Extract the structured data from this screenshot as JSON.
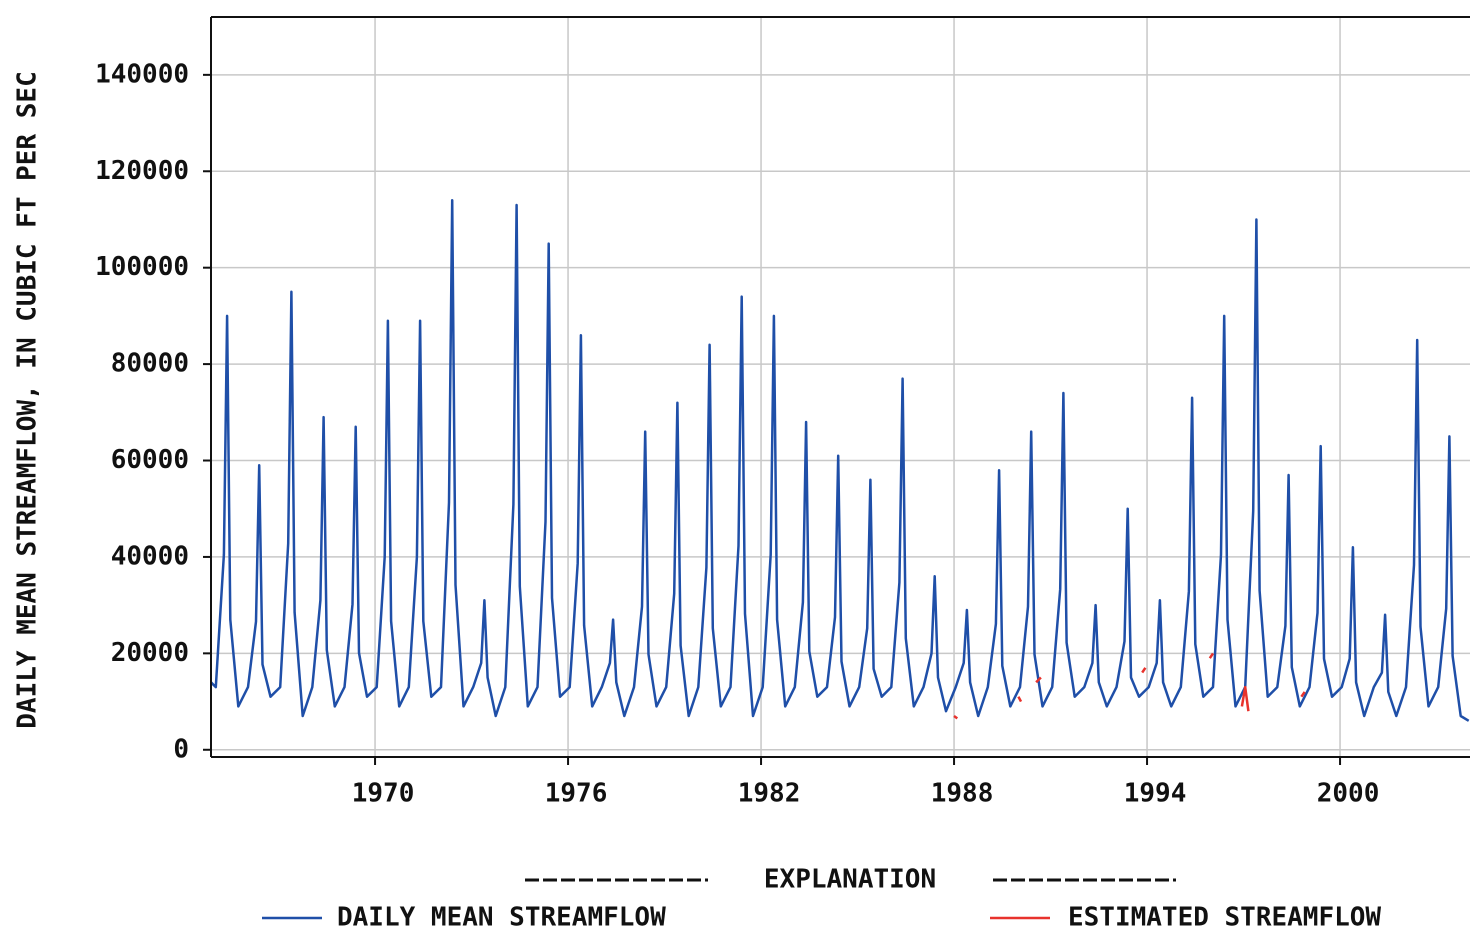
{
  "chart_data": {
    "type": "line",
    "y_label": "DAILY MEAN STREAMFLOW, IN CUBIC FT PER SEC",
    "legend_title": "EXPLANATION",
    "grid": true,
    "xlim": [
      1964.9,
      2004.04
    ],
    "ylim": [
      -1500,
      152000
    ],
    "xticks": [
      1970,
      1976,
      1982,
      1988,
      1994,
      2000
    ],
    "yticks": [
      0,
      20000,
      40000,
      60000,
      80000,
      100000,
      120000,
      140000
    ],
    "series": [
      {
        "name": "DAILY MEAN STREAMFLOW",
        "color": "#1f4fa8",
        "x": [
          1964.9,
          1965.05,
          1965.3,
          1965.4,
          1965.5,
          1965.75,
          1966.05,
          1966.3,
          1966.4,
          1966.5,
          1966.75,
          1967.05,
          1967.3,
          1967.4,
          1967.5,
          1967.75,
          1968.05,
          1968.3,
          1968.4,
          1968.5,
          1968.75,
          1969.05,
          1969.3,
          1969.4,
          1969.5,
          1969.75,
          1970.05,
          1970.3,
          1970.4,
          1970.5,
          1970.75,
          1971.05,
          1971.3,
          1971.4,
          1971.5,
          1971.75,
          1972.05,
          1972.3,
          1972.4,
          1972.5,
          1972.75,
          1973.05,
          1973.3,
          1973.4,
          1973.5,
          1973.75,
          1974.05,
          1974.3,
          1974.4,
          1974.5,
          1974.75,
          1975.05,
          1975.3,
          1975.4,
          1975.5,
          1975.75,
          1976.05,
          1976.3,
          1976.4,
          1976.5,
          1976.75,
          1977.05,
          1977.3,
          1977.4,
          1977.5,
          1977.75,
          1978.05,
          1978.3,
          1978.4,
          1978.5,
          1978.75,
          1979.05,
          1979.3,
          1979.4,
          1979.5,
          1979.75,
          1980.05,
          1980.3,
          1980.4,
          1980.5,
          1980.75,
          1981.05,
          1981.3,
          1981.4,
          1981.5,
          1981.75,
          1982.05,
          1982.3,
          1982.4,
          1982.5,
          1982.75,
          1983.05,
          1983.3,
          1983.4,
          1983.5,
          1983.75,
          1984.05,
          1984.3,
          1984.4,
          1984.5,
          1984.75,
          1985.05,
          1985.3,
          1985.4,
          1985.5,
          1985.75,
          1986.05,
          1986.3,
          1986.4,
          1986.5,
          1986.75,
          1987.05,
          1987.3,
          1987.4,
          1987.5,
          1987.75,
          1988.05,
          1988.3,
          1988.4,
          1988.5,
          1988.75,
          1989.05,
          1989.3,
          1989.4,
          1989.5,
          1989.75,
          1990.05,
          1990.3,
          1990.4,
          1990.5,
          1990.75,
          1991.05,
          1991.3,
          1991.4,
          1991.5,
          1991.75,
          1992.05,
          1992.3,
          1992.4,
          1992.5,
          1992.75,
          1993.05,
          1993.3,
          1993.4,
          1993.5,
          1993.75,
          1994.05,
          1994.3,
          1994.4,
          1994.5,
          1994.75,
          1995.05,
          1995.3,
          1995.4,
          1995.5,
          1995.75,
          1996.05,
          1996.3,
          1996.4,
          1996.5,
          1996.75,
          1997.05,
          1997.3,
          1997.4,
          1997.5,
          1997.75,
          1998.05,
          1998.3,
          1998.4,
          1998.5,
          1998.75,
          1999.05,
          1999.3,
          1999.4,
          1999.5,
          1999.75,
          2000.05,
          2000.3,
          2000.4,
          2000.5,
          2000.75,
          2001.05,
          2001.3,
          2001.4,
          2001.5,
          2001.75,
          2002.05,
          2002.3,
          2002.4,
          2002.5,
          2002.75,
          2003.05,
          2003.3,
          2003.4,
          2003.5,
          2003.75,
          2004.0
        ],
        "values": [
          14000,
          13000,
          40500,
          90000,
          27000,
          9000,
          13000,
          26600,
          59000,
          17700,
          11000,
          13000,
          42800,
          95000,
          28500,
          7000,
          13000,
          31000,
          69000,
          20700,
          9000,
          13000,
          30200,
          67000,
          20100,
          11000,
          13000,
          40000,
          89000,
          26700,
          9000,
          13000,
          40000,
          89000,
          26700,
          11000,
          13000,
          51300,
          114000,
          34200,
          9000,
          13000,
          18000,
          31000,
          15000,
          7000,
          13000,
          50900,
          113000,
          33900,
          9000,
          13000,
          47300,
          105000,
          31500,
          11000,
          13000,
          38700,
          86000,
          25800,
          9000,
          13000,
          18000,
          27000,
          14000,
          7000,
          13000,
          29700,
          66000,
          19800,
          9000,
          13000,
          32400,
          72000,
          21600,
          7000,
          13000,
          37800,
          84000,
          25200,
          9000,
          13000,
          42300,
          94000,
          28200,
          7000,
          13000,
          40500,
          90000,
          27000,
          9000,
          13000,
          30600,
          68000,
          20400,
          11000,
          13000,
          27500,
          61000,
          18300,
          9000,
          13000,
          25200,
          56000,
          16800,
          11000,
          13000,
          34700,
          77000,
          23100,
          9000,
          13000,
          20000,
          36000,
          15000,
          8000,
          13000,
          18000,
          29000,
          14000,
          7000,
          13000,
          26100,
          58000,
          17400,
          9000,
          13000,
          29700,
          66000,
          19800,
          9000,
          13000,
          33300,
          74000,
          22200,
          11000,
          13000,
          18000,
          30000,
          14000,
          9000,
          13000,
          22500,
          50000,
          15000,
          11000,
          13000,
          18000,
          31000,
          14000,
          9000,
          13000,
          32900,
          73000,
          21900,
          11000,
          13000,
          40500,
          90000,
          27000,
          9000,
          13000,
          49500,
          110000,
          33000,
          11000,
          13000,
          25700,
          57000,
          17100,
          9000,
          13000,
          28400,
          63000,
          18900,
          11000,
          13000,
          18900,
          42000,
          14000,
          7000,
          13000,
          16000,
          28000,
          12000,
          7000,
          13000,
          38300,
          85000,
          25500,
          9000,
          13000,
          29300,
          65000,
          19500,
          7000,
          6000
        ]
      },
      {
        "name": "ESTIMATED STREAMFLOW",
        "color": "#e8322c",
        "x": [
          1988.0,
          1988.1,
          1988.2,
          1990.0,
          1990.08,
          1990.2,
          1990.55,
          1990.7,
          1990.8,
          1993.85,
          1993.95,
          1994.0,
          1995.95,
          1996.05,
          1996.1,
          1996.95,
          1997.05,
          1997.15,
          1997.25,
          1998.8,
          1998.9
        ],
        "values": [
          7000,
          6500,
          null,
          11000,
          10000,
          null,
          14000,
          15000,
          null,
          16000,
          17000,
          null,
          19000,
          20000,
          null,
          9000,
          13000,
          8000,
          null,
          11000,
          12000
        ]
      }
    ]
  }
}
